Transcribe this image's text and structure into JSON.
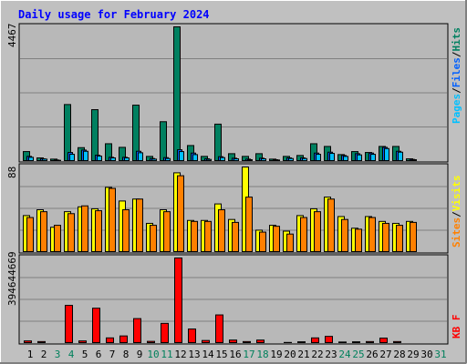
{
  "title": "Daily usage for February 2024",
  "colors": {
    "background": "#c0c0c0",
    "plot_background": "#b8b8b8",
    "title": "#0000ff",
    "hits": "#008060",
    "files": "#0060ff",
    "pages": "#00c0ff",
    "visits": "#ffff00",
    "sites": "#ff8000",
    "kbytes": "#ff0000",
    "weekend_label": "#00805c",
    "weekday_label": "#000000"
  },
  "panels": {
    "hits_max_label": "4467",
    "visits_max_label": "88",
    "kb_max_label": "394644669",
    "legend_pages": "Pages",
    "legend_files": "Files",
    "legend_hits": "Hits",
    "legend_sites": "Sites",
    "legend_visits": "Visits",
    "legend_kb": "KB F",
    "legend_separator": "/"
  },
  "chart_data": {
    "type": "bar",
    "title": "Daily usage for February 2024",
    "x": [
      "1",
      "2",
      "3",
      "4",
      "5",
      "6",
      "7",
      "8",
      "9",
      "10",
      "11",
      "12",
      "13",
      "14",
      "15",
      "16",
      "17",
      "18",
      "19",
      "20",
      "21",
      "22",
      "23",
      "24",
      "25",
      "26",
      "27",
      "28",
      "29",
      "30",
      "31"
    ],
    "weekend": [
      false,
      false,
      true,
      true,
      false,
      false,
      false,
      false,
      false,
      true,
      true,
      false,
      false,
      false,
      false,
      false,
      true,
      true,
      false,
      false,
      false,
      false,
      false,
      true,
      true,
      false,
      false,
      false,
      false,
      false,
      true
    ],
    "series": [
      {
        "name": "Hits",
        "panel": "top",
        "values": [
          330,
          120,
          80,
          1890,
          460,
          1720,
          590,
          470,
          1870,
          170,
          1320,
          4467,
          530,
          170,
          1240,
          260,
          170,
          260,
          80,
          170,
          200,
          590,
          500,
          230,
          330,
          300,
          500,
          500,
          90,
          0,
          0
        ]
      },
      {
        "name": "Files",
        "panel": "top",
        "values": [
          170,
          90,
          50,
          300,
          380,
          210,
          140,
          140,
          340,
          100,
          130,
          390,
          280,
          90,
          160,
          110,
          80,
          110,
          60,
          120,
          120,
          280,
          310,
          200,
          260,
          280,
          470,
          340,
          70,
          0,
          0
        ]
      },
      {
        "name": "Pages",
        "panel": "top",
        "values": [
          140,
          80,
          40,
          240,
          340,
          180,
          120,
          120,
          290,
          80,
          100,
          330,
          230,
          70,
          130,
          90,
          60,
          90,
          50,
          100,
          100,
          240,
          270,
          170,
          220,
          240,
          430,
          310,
          60,
          0,
          0
        ]
      },
      {
        "name": "Visits",
        "panel": "mid",
        "values": [
          38,
          44,
          26,
          42,
          47,
          45,
          67,
          53,
          55,
          30,
          44,
          82,
          33,
          33,
          50,
          34,
          88,
          23,
          28,
          22,
          38,
          45,
          57,
          37,
          25,
          37,
          32,
          30,
          32,
          0,
          0
        ]
      },
      {
        "name": "Sites",
        "panel": "mid",
        "values": [
          36,
          42,
          28,
          40,
          48,
          43,
          66,
          44,
          55,
          28,
          42,
          79,
          32,
          32,
          44,
          31,
          57,
          21,
          27,
          19,
          36,
          42,
          55,
          34,
          24,
          36,
          30,
          28,
          31,
          0,
          0
        ]
      },
      {
        "name": "KB F",
        "panel": "bottom",
        "values": [
          12000000,
          9000000,
          4000000,
          176000000,
          12000000,
          163000000,
          26000000,
          35000000,
          115000000,
          10000000,
          93000000,
          394644669,
          67000000,
          14000000,
          132000000,
          16000000,
          9000000,
          16000000,
          4000000,
          5000000,
          8000000,
          26000000,
          33000000,
          7000000,
          8000000,
          9000000,
          25000000,
          9000000,
          4000000,
          0,
          0
        ]
      }
    ],
    "ylim_top": [
      0,
      4467
    ],
    "ylim_mid": [
      0,
      88
    ],
    "ylim_bottom": [
      0,
      394644669
    ]
  }
}
